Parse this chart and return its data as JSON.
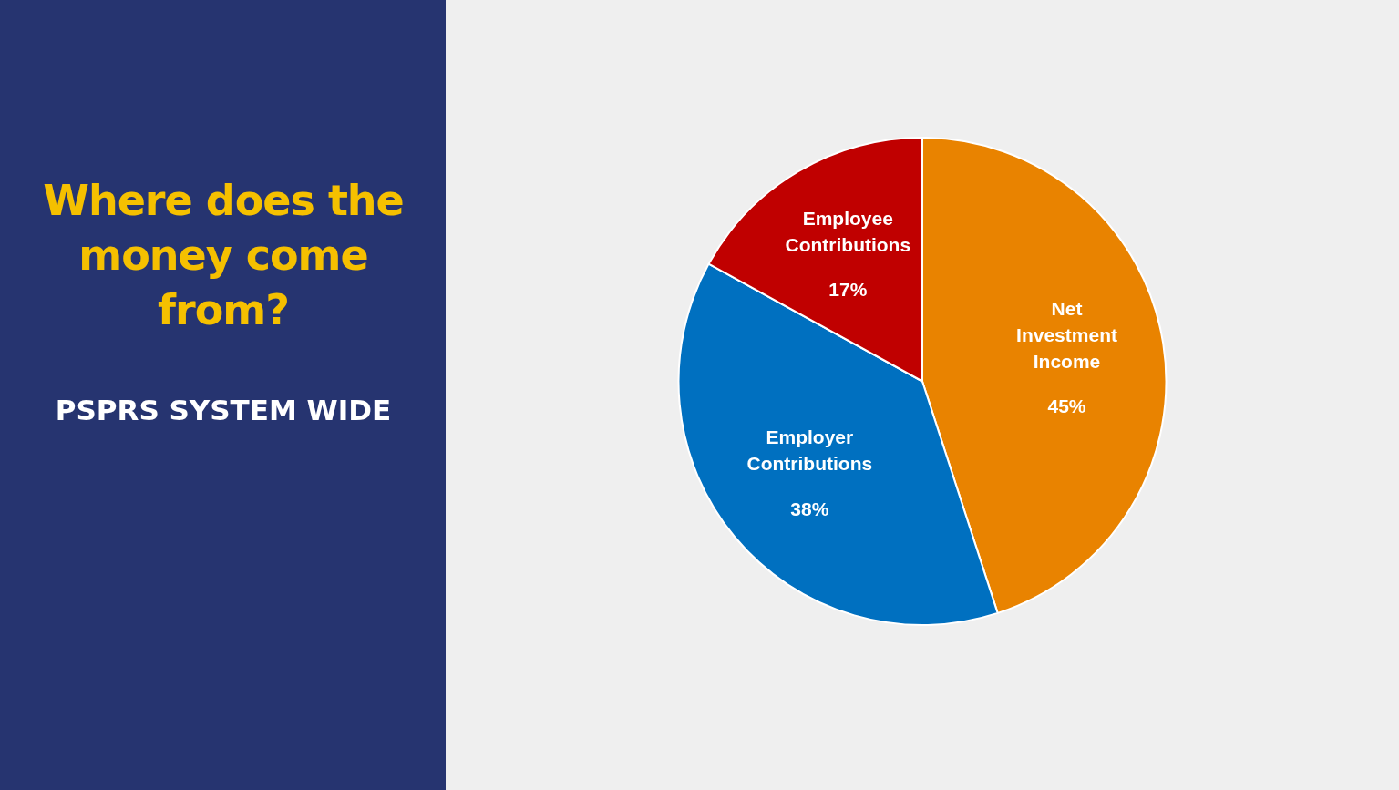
{
  "chart_data": {
    "type": "pie",
    "title": "Where does the money come from?",
    "subtitle": "PSPRS SYSTEM WIDE",
    "categories": [
      "Net Investment Income",
      "Employer Contributions",
      "Employee Contributions"
    ],
    "values": [
      45,
      38,
      17
    ],
    "colors": [
      "#e98300",
      "#0070c0",
      "#c00000"
    ],
    "value_labels": [
      "45%",
      "38%",
      "17%"
    ],
    "legend": false
  }
}
